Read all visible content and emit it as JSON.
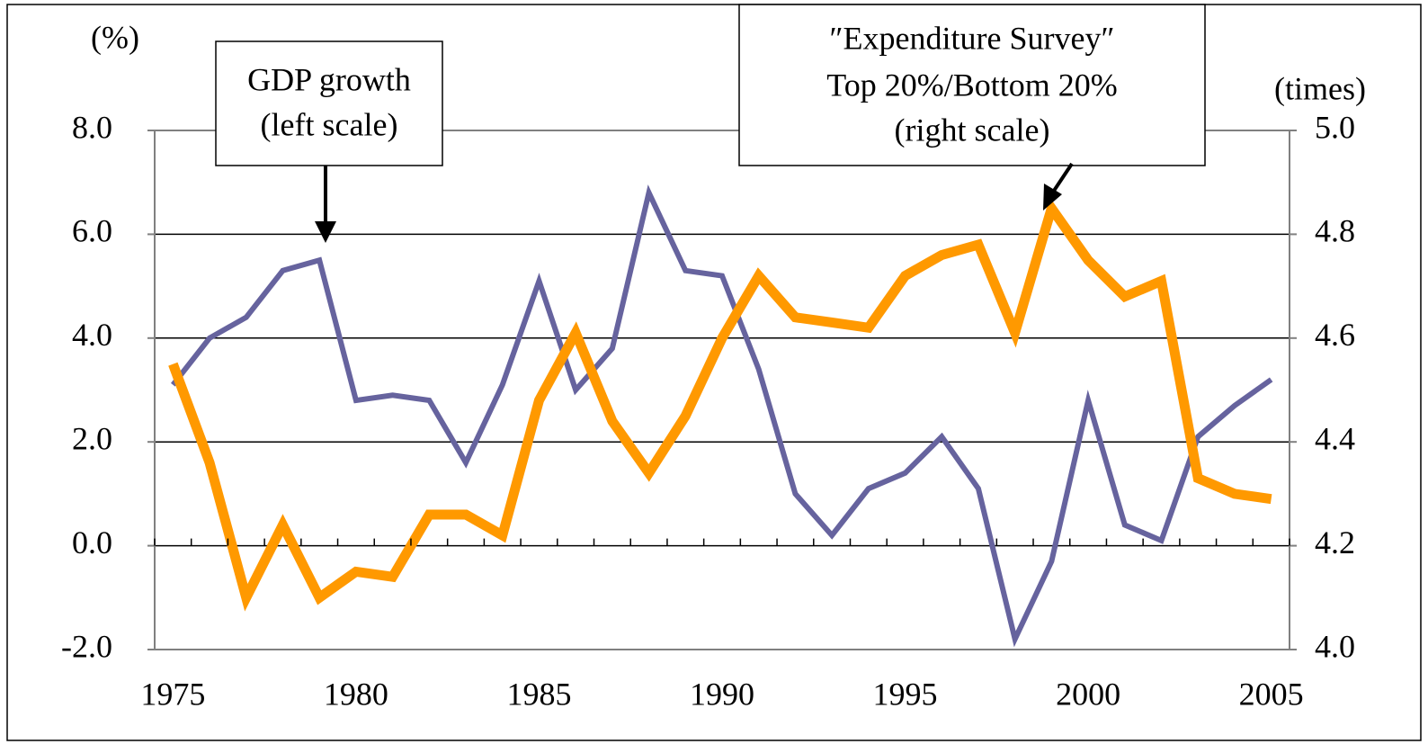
{
  "chart_data": {
    "type": "line",
    "x": [
      1975,
      1976,
      1977,
      1978,
      1979,
      1980,
      1981,
      1982,
      1983,
      1984,
      1985,
      1986,
      1987,
      1988,
      1989,
      1990,
      1991,
      1992,
      1993,
      1994,
      1995,
      1996,
      1997,
      1998,
      1999,
      2000,
      2001,
      2002,
      2003,
      2004,
      2005
    ],
    "series": [
      {
        "name": "GDP growth",
        "color": "#66639e",
        "values": [
          3.1,
          4.0,
          4.4,
          5.3,
          5.5,
          2.8,
          2.9,
          2.8,
          1.6,
          3.1,
          5.1,
          3.0,
          3.8,
          6.8,
          5.3,
          5.2,
          3.4,
          1.0,
          0.2,
          1.1,
          1.4,
          2.1,
          1.1,
          -1.8,
          -0.3,
          2.8,
          0.4,
          0.1,
          2.1,
          2.7,
          3.2
        ]
      },
      {
        "name": "Expenditure Survey Top 20%/Bottom 20%",
        "color": "#ff9900",
        "axis": "y2",
        "values": [
          4.55,
          4.36,
          4.1,
          4.24,
          4.1,
          4.15,
          4.14,
          4.26,
          4.26,
          4.22,
          4.48,
          4.61,
          4.44,
          4.34,
          4.45,
          4.6,
          4.72,
          4.64,
          4.63,
          4.62,
          4.72,
          4.76,
          4.78,
          4.61,
          4.85,
          4.75,
          4.68,
          4.71,
          4.33,
          4.3,
          4.29
        ]
      }
    ],
    "xlim": [
      1974.5,
      2005.5
    ],
    "xticks": [
      1975,
      1980,
      1985,
      1990,
      1995,
      2000,
      2005
    ],
    "ylim": [
      -2,
      8
    ],
    "yticks": [
      {
        "value": -2,
        "label": "-2.0"
      },
      {
        "value": 0,
        "label": "0.0"
      },
      {
        "value": 2,
        "label": "2.0"
      },
      {
        "value": 4,
        "label": "4.0"
      },
      {
        "value": 6,
        "label": "6.0"
      },
      {
        "value": 8,
        "label": "8.0"
      }
    ],
    "y2lim": [
      4,
      5
    ],
    "y2ticks": [
      {
        "value": 4,
        "label": "4.0"
      },
      {
        "value": 4.2,
        "label": "4.2"
      },
      {
        "value": 4.4,
        "label": "4.4"
      },
      {
        "value": 4.6,
        "label": "4.6"
      },
      {
        "value": 4.8,
        "label": "4.8"
      },
      {
        "value": 5,
        "label": "5.0"
      }
    ],
    "y_label": "(%)",
    "y2_label": "(times)",
    "grid": true,
    "annotations": [
      {
        "lines": [
          "GDP growth",
          "(left scale)"
        ]
      },
      {
        "lines": [
          "″Expenditure Survey″",
          "Top 20%/Bottom 20%",
          "(right scale)"
        ]
      }
    ]
  }
}
